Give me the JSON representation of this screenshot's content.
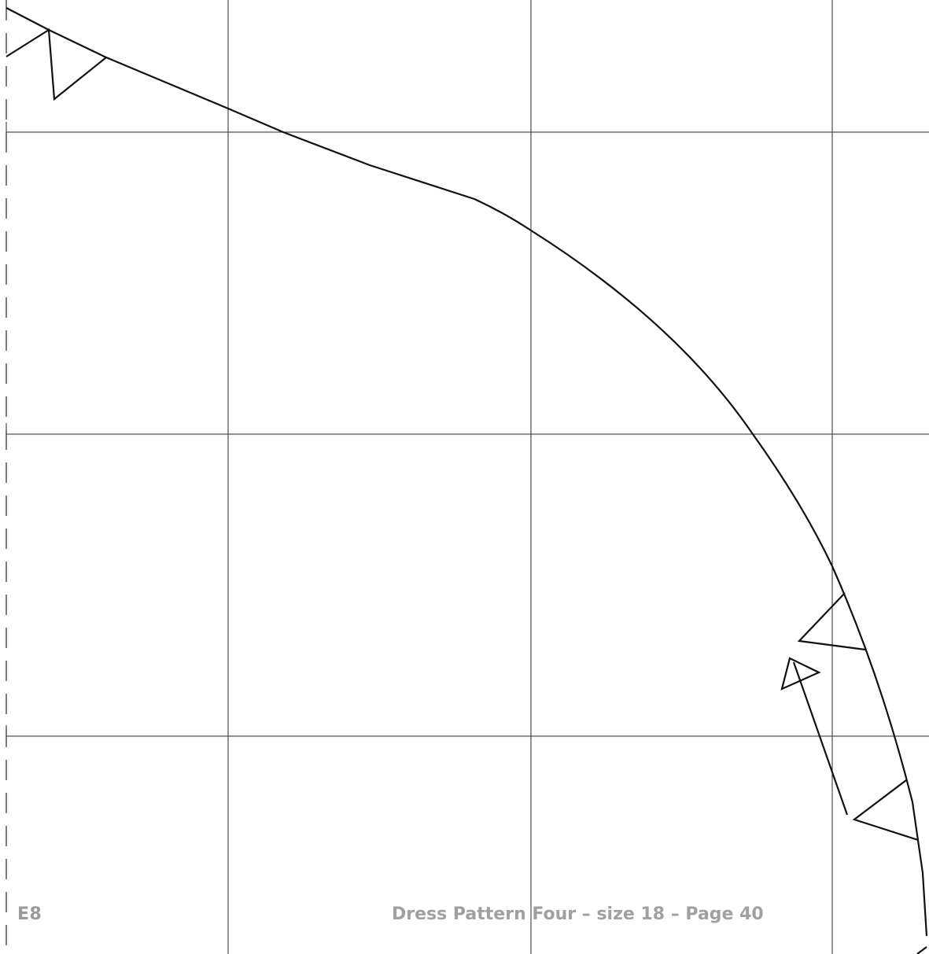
{
  "sheet": {
    "code": "E8",
    "footer": "Dress Pattern Four – size 18 – Page 40"
  },
  "colors": {
    "grid": "#2a2a2a",
    "outline": "#111111",
    "label": "#9a9a9a"
  }
}
